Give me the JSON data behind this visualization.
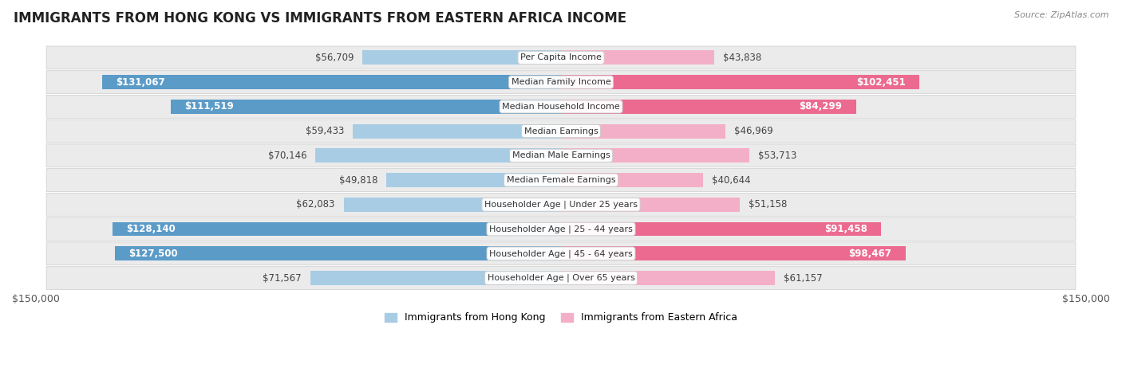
{
  "title": "IMMIGRANTS FROM HONG KONG VS IMMIGRANTS FROM EASTERN AFRICA INCOME",
  "source": "Source: ZipAtlas.com",
  "categories": [
    "Per Capita Income",
    "Median Family Income",
    "Median Household Income",
    "Median Earnings",
    "Median Male Earnings",
    "Median Female Earnings",
    "Householder Age | Under 25 years",
    "Householder Age | 25 - 44 years",
    "Householder Age | 45 - 64 years",
    "Householder Age | Over 65 years"
  ],
  "hong_kong_values": [
    56709,
    131067,
    111519,
    59433,
    70146,
    49818,
    62083,
    128140,
    127500,
    71567
  ],
  "eastern_africa_values": [
    43838,
    102451,
    84299,
    46969,
    53713,
    40644,
    51158,
    91458,
    98467,
    61157
  ],
  "hong_kong_labels": [
    "$56,709",
    "$131,067",
    "$111,519",
    "$59,433",
    "$70,146",
    "$49,818",
    "$62,083",
    "$128,140",
    "$127,500",
    "$71,567"
  ],
  "eastern_africa_labels": [
    "$43,838",
    "$102,451",
    "$84,299",
    "$46,969",
    "$53,713",
    "$40,644",
    "$51,158",
    "$91,458",
    "$98,467",
    "$61,157"
  ],
  "hk_color_light": "#a8cce4",
  "hk_color_dark": "#5b9bc8",
  "ea_color_light": "#f4afc8",
  "ea_color_dark": "#ec6a90",
  "max_value": 150000,
  "bg_color": "#ffffff",
  "row_bg": "#ebebeb",
  "inside_threshold": 80000,
  "legend_hk": "Immigrants from Hong Kong",
  "legend_ea": "Immigrants from Eastern Africa",
  "title_fontsize": 12,
  "label_fontsize": 8.5,
  "category_fontsize": 8.0,
  "outside_label_color": "#444444",
  "inside_label_color": "#ffffff"
}
